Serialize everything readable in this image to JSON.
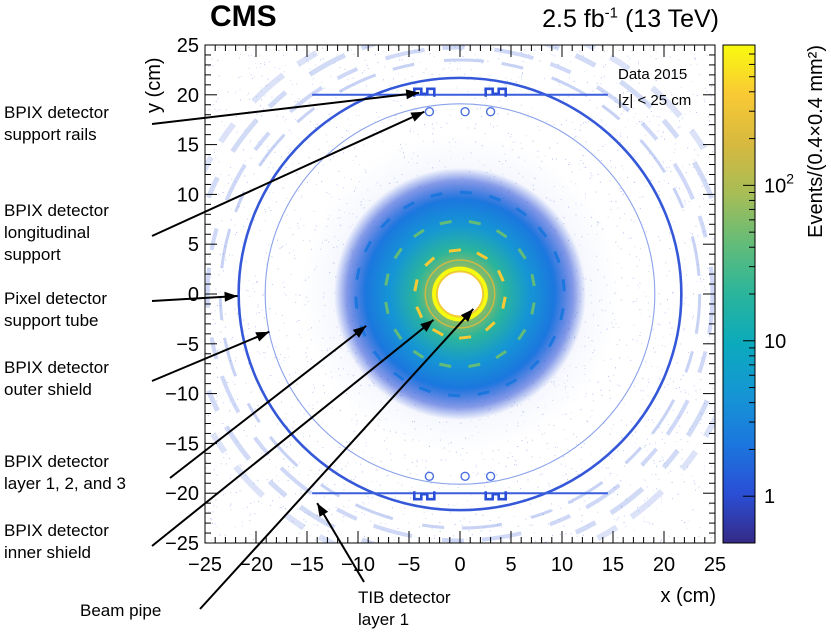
{
  "header": {
    "experiment": "CMS",
    "lumi_value": "2.5 fb",
    "lumi_exp": "-1",
    "energy": " (13 TeV)"
  },
  "chart_data": {
    "type": "heatmap",
    "title": "",
    "xlabel": "x (cm)",
    "ylabel": "y (cm)",
    "zlabel": "Events/(0.4×0.4 mm²)",
    "xlim": [
      -25,
      25
    ],
    "ylim": [
      -25,
      25
    ],
    "xticks": [
      -25,
      -20,
      -15,
      -10,
      -5,
      0,
      5,
      10,
      15,
      20,
      25
    ],
    "yticks": [
      -25,
      -20,
      -15,
      -10,
      -5,
      0,
      5,
      10,
      15,
      20,
      25
    ],
    "xtick_labels": [
      "−25",
      "−20",
      "−15",
      "−10",
      "−5",
      "0",
      "5",
      "10",
      "15",
      "20",
      "25"
    ],
    "ytick_labels": [
      "−25",
      "−20",
      "−15",
      "−10",
      "−5",
      "0",
      "5",
      "10",
      "15",
      "20",
      "25"
    ],
    "colorbar": {
      "scale": "log",
      "range": [
        0.5,
        800
      ],
      "tick_labels": [
        {
          "value": 1,
          "label": "1"
        },
        {
          "value": 10,
          "label": "10"
        },
        {
          "value": 100,
          "label": "10",
          "exponent": "2"
        }
      ],
      "colors": [
        "#352a87",
        "#2a4fd6",
        "#1b77de",
        "#1596d4",
        "#0caabd",
        "#2ab59b",
        "#62bc79",
        "#a6bd56",
        "#d6b93f",
        "#f9c935",
        "#f9fb0e"
      ]
    },
    "info_lines": [
      "Data 2015",
      "|z| < 25 cm"
    ],
    "structures": [
      {
        "name": "Beam pipe",
        "shape": "circle",
        "radius_cm": 2.25
      },
      {
        "name": "BPIX detector inner shield",
        "shape": "circle",
        "radius_cm": 3.4
      },
      {
        "name": "BPIX detector layer 1",
        "shape": "ring",
        "radius_cm": 4.4
      },
      {
        "name": "BPIX detector layer 2",
        "shape": "ring",
        "radius_cm": 7.3
      },
      {
        "name": "BPIX detector layer 3",
        "shape": "ring",
        "radius_cm": 10.2
      },
      {
        "name": "BPIX detector outer shield",
        "shape": "circle",
        "radius_cm": 19.1
      },
      {
        "name": "Pixel detector support tube",
        "shape": "circle",
        "radius_cm": 21.7
      },
      {
        "name": "TIB detector layer 1",
        "shape": "arc",
        "radius_cm": 24.0
      }
    ]
  },
  "annotations": [
    {
      "lines": [
        "BPIX detector",
        "support rails"
      ],
      "target": [
        -4.0,
        20.2
      ]
    },
    {
      "lines": [
        "BPIX detector",
        "longitudinal",
        "support"
      ],
      "target": [
        -3.5,
        18.3
      ]
    },
    {
      "lines": [
        "Pixel detector",
        "support tube"
      ],
      "target": [
        -21.8,
        -0.2
      ]
    },
    {
      "lines": [
        "BPIX detector",
        "outer shield"
      ],
      "target": [
        -18.7,
        -3.8
      ]
    },
    {
      "lines": [
        "BPIX detector",
        "layer 1, 2, and 3"
      ],
      "target": [
        -9.2,
        -3.2
      ]
    },
    {
      "lines": [
        "BPIX detector",
        "inner shield"
      ],
      "target": [
        -2.6,
        -2.6
      ]
    },
    {
      "lines": [
        "Beam pipe"
      ],
      "target": [
        1.3,
        -1.5
      ]
    },
    {
      "lines": [
        "TIB detector",
        "layer 1"
      ],
      "target": [
        -14.0,
        -21.0
      ]
    }
  ]
}
